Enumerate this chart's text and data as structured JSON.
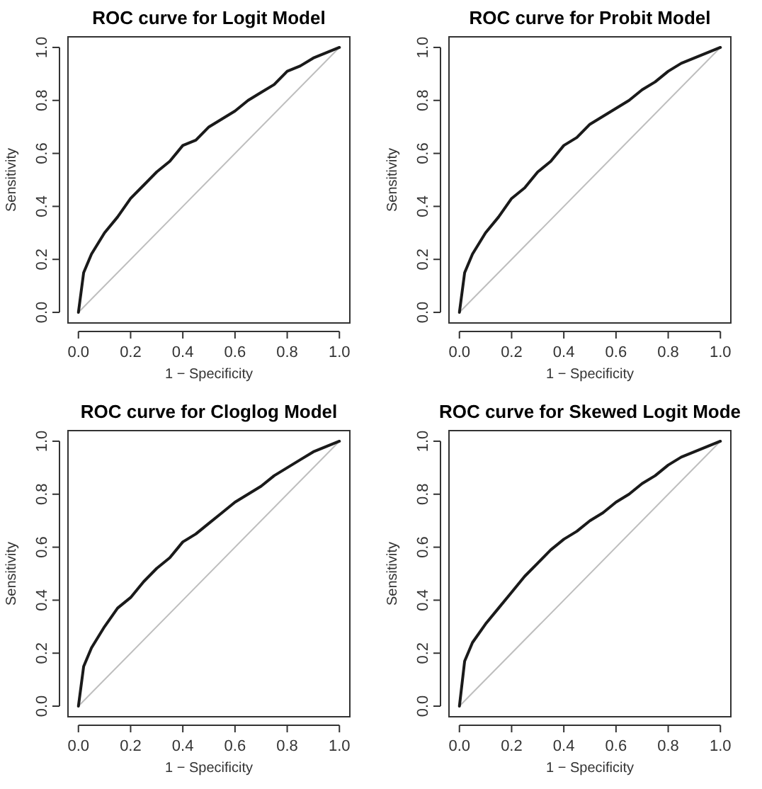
{
  "chart_data": [
    {
      "type": "line",
      "title": "ROC curve for Logit Model",
      "xlabel": "1 − Specificity",
      "ylabel": "Sensitivity",
      "xlim": [
        -0.04,
        1.04
      ],
      "ylim": [
        -0.04,
        1.04
      ],
      "xticks": [
        {
          "value": 0,
          "label": "0.0"
        },
        {
          "value": 0.2,
          "label": "0.2"
        },
        {
          "value": 0.4,
          "label": "0.4"
        },
        {
          "value": 0.6,
          "label": "0.6"
        },
        {
          "value": 0.8,
          "label": "0.8"
        },
        {
          "value": 1,
          "label": "1.0"
        }
      ],
      "yticks": [
        {
          "value": 0,
          "label": "0.0"
        },
        {
          "value": 0.2,
          "label": "0.2"
        },
        {
          "value": 0.4,
          "label": "0.4"
        },
        {
          "value": 0.6,
          "label": "0.6"
        },
        {
          "value": 0.8,
          "label": "0.8"
        },
        {
          "value": 1,
          "label": "1.0"
        }
      ],
      "grid": false,
      "series": [
        {
          "color": "#1a1a1a",
          "x": [
            0,
            0.02,
            0.05,
            0.1,
            0.15,
            0.2,
            0.25,
            0.3,
            0.35,
            0.4,
            0.45,
            0.5,
            0.55,
            0.6,
            0.65,
            0.7,
            0.75,
            0.8,
            0.85,
            0.9,
            0.95,
            1
          ],
          "values": [
            0,
            0.15,
            0.22,
            0.3,
            0.36,
            0.43,
            0.48,
            0.53,
            0.57,
            0.63,
            0.65,
            0.7,
            0.73,
            0.76,
            0.8,
            0.83,
            0.86,
            0.91,
            0.93,
            0.96,
            0.98,
            1
          ]
        },
        {
          "color": "#bebebe",
          "x": [
            0,
            1
          ],
          "values": [
            0,
            1
          ]
        }
      ]
    },
    {
      "type": "line",
      "title": "ROC curve for Probit Model",
      "xlabel": "1 − Specificity",
      "ylabel": "Sensitivity",
      "xlim": [
        -0.04,
        1.04
      ],
      "ylim": [
        -0.04,
        1.04
      ],
      "xticks": [
        {
          "value": 0,
          "label": "0.0"
        },
        {
          "value": 0.2,
          "label": "0.2"
        },
        {
          "value": 0.4,
          "label": "0.4"
        },
        {
          "value": 0.6,
          "label": "0.6"
        },
        {
          "value": 0.8,
          "label": "0.8"
        },
        {
          "value": 1,
          "label": "1.0"
        }
      ],
      "yticks": [
        {
          "value": 0,
          "label": "0.0"
        },
        {
          "value": 0.2,
          "label": "0.2"
        },
        {
          "value": 0.4,
          "label": "0.4"
        },
        {
          "value": 0.6,
          "label": "0.6"
        },
        {
          "value": 0.8,
          "label": "0.8"
        },
        {
          "value": 1,
          "label": "1.0"
        }
      ],
      "grid": false,
      "series": [
        {
          "color": "#1a1a1a",
          "x": [
            0,
            0.02,
            0.05,
            0.1,
            0.15,
            0.2,
            0.25,
            0.3,
            0.35,
            0.4,
            0.45,
            0.5,
            0.55,
            0.6,
            0.65,
            0.7,
            0.75,
            0.8,
            0.85,
            0.9,
            0.95,
            1
          ],
          "values": [
            0,
            0.15,
            0.22,
            0.3,
            0.36,
            0.43,
            0.47,
            0.53,
            0.57,
            0.63,
            0.66,
            0.71,
            0.74,
            0.77,
            0.8,
            0.84,
            0.87,
            0.91,
            0.94,
            0.96,
            0.98,
            1
          ]
        },
        {
          "color": "#bebebe",
          "x": [
            0,
            1
          ],
          "values": [
            0,
            1
          ]
        }
      ]
    },
    {
      "type": "line",
      "title": "ROC curve for Cloglog Model",
      "xlabel": "1 − Specificity",
      "ylabel": "Sensitivity",
      "xlim": [
        -0.04,
        1.04
      ],
      "ylim": [
        -0.04,
        1.04
      ],
      "xticks": [
        {
          "value": 0,
          "label": "0.0"
        },
        {
          "value": 0.2,
          "label": "0.2"
        },
        {
          "value": 0.4,
          "label": "0.4"
        },
        {
          "value": 0.6,
          "label": "0.6"
        },
        {
          "value": 0.8,
          "label": "0.8"
        },
        {
          "value": 1,
          "label": "1.0"
        }
      ],
      "yticks": [
        {
          "value": 0,
          "label": "0.0"
        },
        {
          "value": 0.2,
          "label": "0.2"
        },
        {
          "value": 0.4,
          "label": "0.4"
        },
        {
          "value": 0.6,
          "label": "0.6"
        },
        {
          "value": 0.8,
          "label": "0.8"
        },
        {
          "value": 1,
          "label": "1.0"
        }
      ],
      "grid": false,
      "series": [
        {
          "color": "#1a1a1a",
          "x": [
            0,
            0.02,
            0.05,
            0.1,
            0.15,
            0.2,
            0.25,
            0.3,
            0.35,
            0.4,
            0.45,
            0.5,
            0.55,
            0.6,
            0.65,
            0.7,
            0.75,
            0.8,
            0.85,
            0.9,
            0.95,
            1
          ],
          "values": [
            0,
            0.15,
            0.22,
            0.3,
            0.37,
            0.41,
            0.47,
            0.52,
            0.56,
            0.62,
            0.65,
            0.69,
            0.73,
            0.77,
            0.8,
            0.83,
            0.87,
            0.9,
            0.93,
            0.96,
            0.98,
            1
          ]
        },
        {
          "color": "#bebebe",
          "x": [
            0,
            1
          ],
          "values": [
            0,
            1
          ]
        }
      ]
    },
    {
      "type": "line",
      "title": "ROC curve for Skewed Logit Mode",
      "xlabel": "1 − Specificity",
      "ylabel": "Sensitivity",
      "xlim": [
        -0.04,
        1.04
      ],
      "ylim": [
        -0.04,
        1.04
      ],
      "xticks": [
        {
          "value": 0,
          "label": "0.0"
        },
        {
          "value": 0.2,
          "label": "0.2"
        },
        {
          "value": 0.4,
          "label": "0.4"
        },
        {
          "value": 0.6,
          "label": "0.6"
        },
        {
          "value": 0.8,
          "label": "0.8"
        },
        {
          "value": 1,
          "label": "1.0"
        }
      ],
      "yticks": [
        {
          "value": 0,
          "label": "0.0"
        },
        {
          "value": 0.2,
          "label": "0.2"
        },
        {
          "value": 0.4,
          "label": "0.4"
        },
        {
          "value": 0.6,
          "label": "0.6"
        },
        {
          "value": 0.8,
          "label": "0.8"
        },
        {
          "value": 1,
          "label": "1.0"
        }
      ],
      "grid": false,
      "series": [
        {
          "color": "#1a1a1a",
          "x": [
            0,
            0.02,
            0.05,
            0.1,
            0.15,
            0.2,
            0.25,
            0.3,
            0.35,
            0.4,
            0.45,
            0.5,
            0.55,
            0.6,
            0.65,
            0.7,
            0.75,
            0.8,
            0.85,
            0.9,
            0.95,
            1
          ],
          "values": [
            0,
            0.17,
            0.24,
            0.31,
            0.37,
            0.43,
            0.49,
            0.54,
            0.59,
            0.63,
            0.66,
            0.7,
            0.73,
            0.77,
            0.8,
            0.84,
            0.87,
            0.91,
            0.94,
            0.96,
            0.98,
            1
          ]
        },
        {
          "color": "#bebebe",
          "x": [
            0,
            1
          ],
          "values": [
            0,
            1
          ]
        }
      ]
    }
  ]
}
